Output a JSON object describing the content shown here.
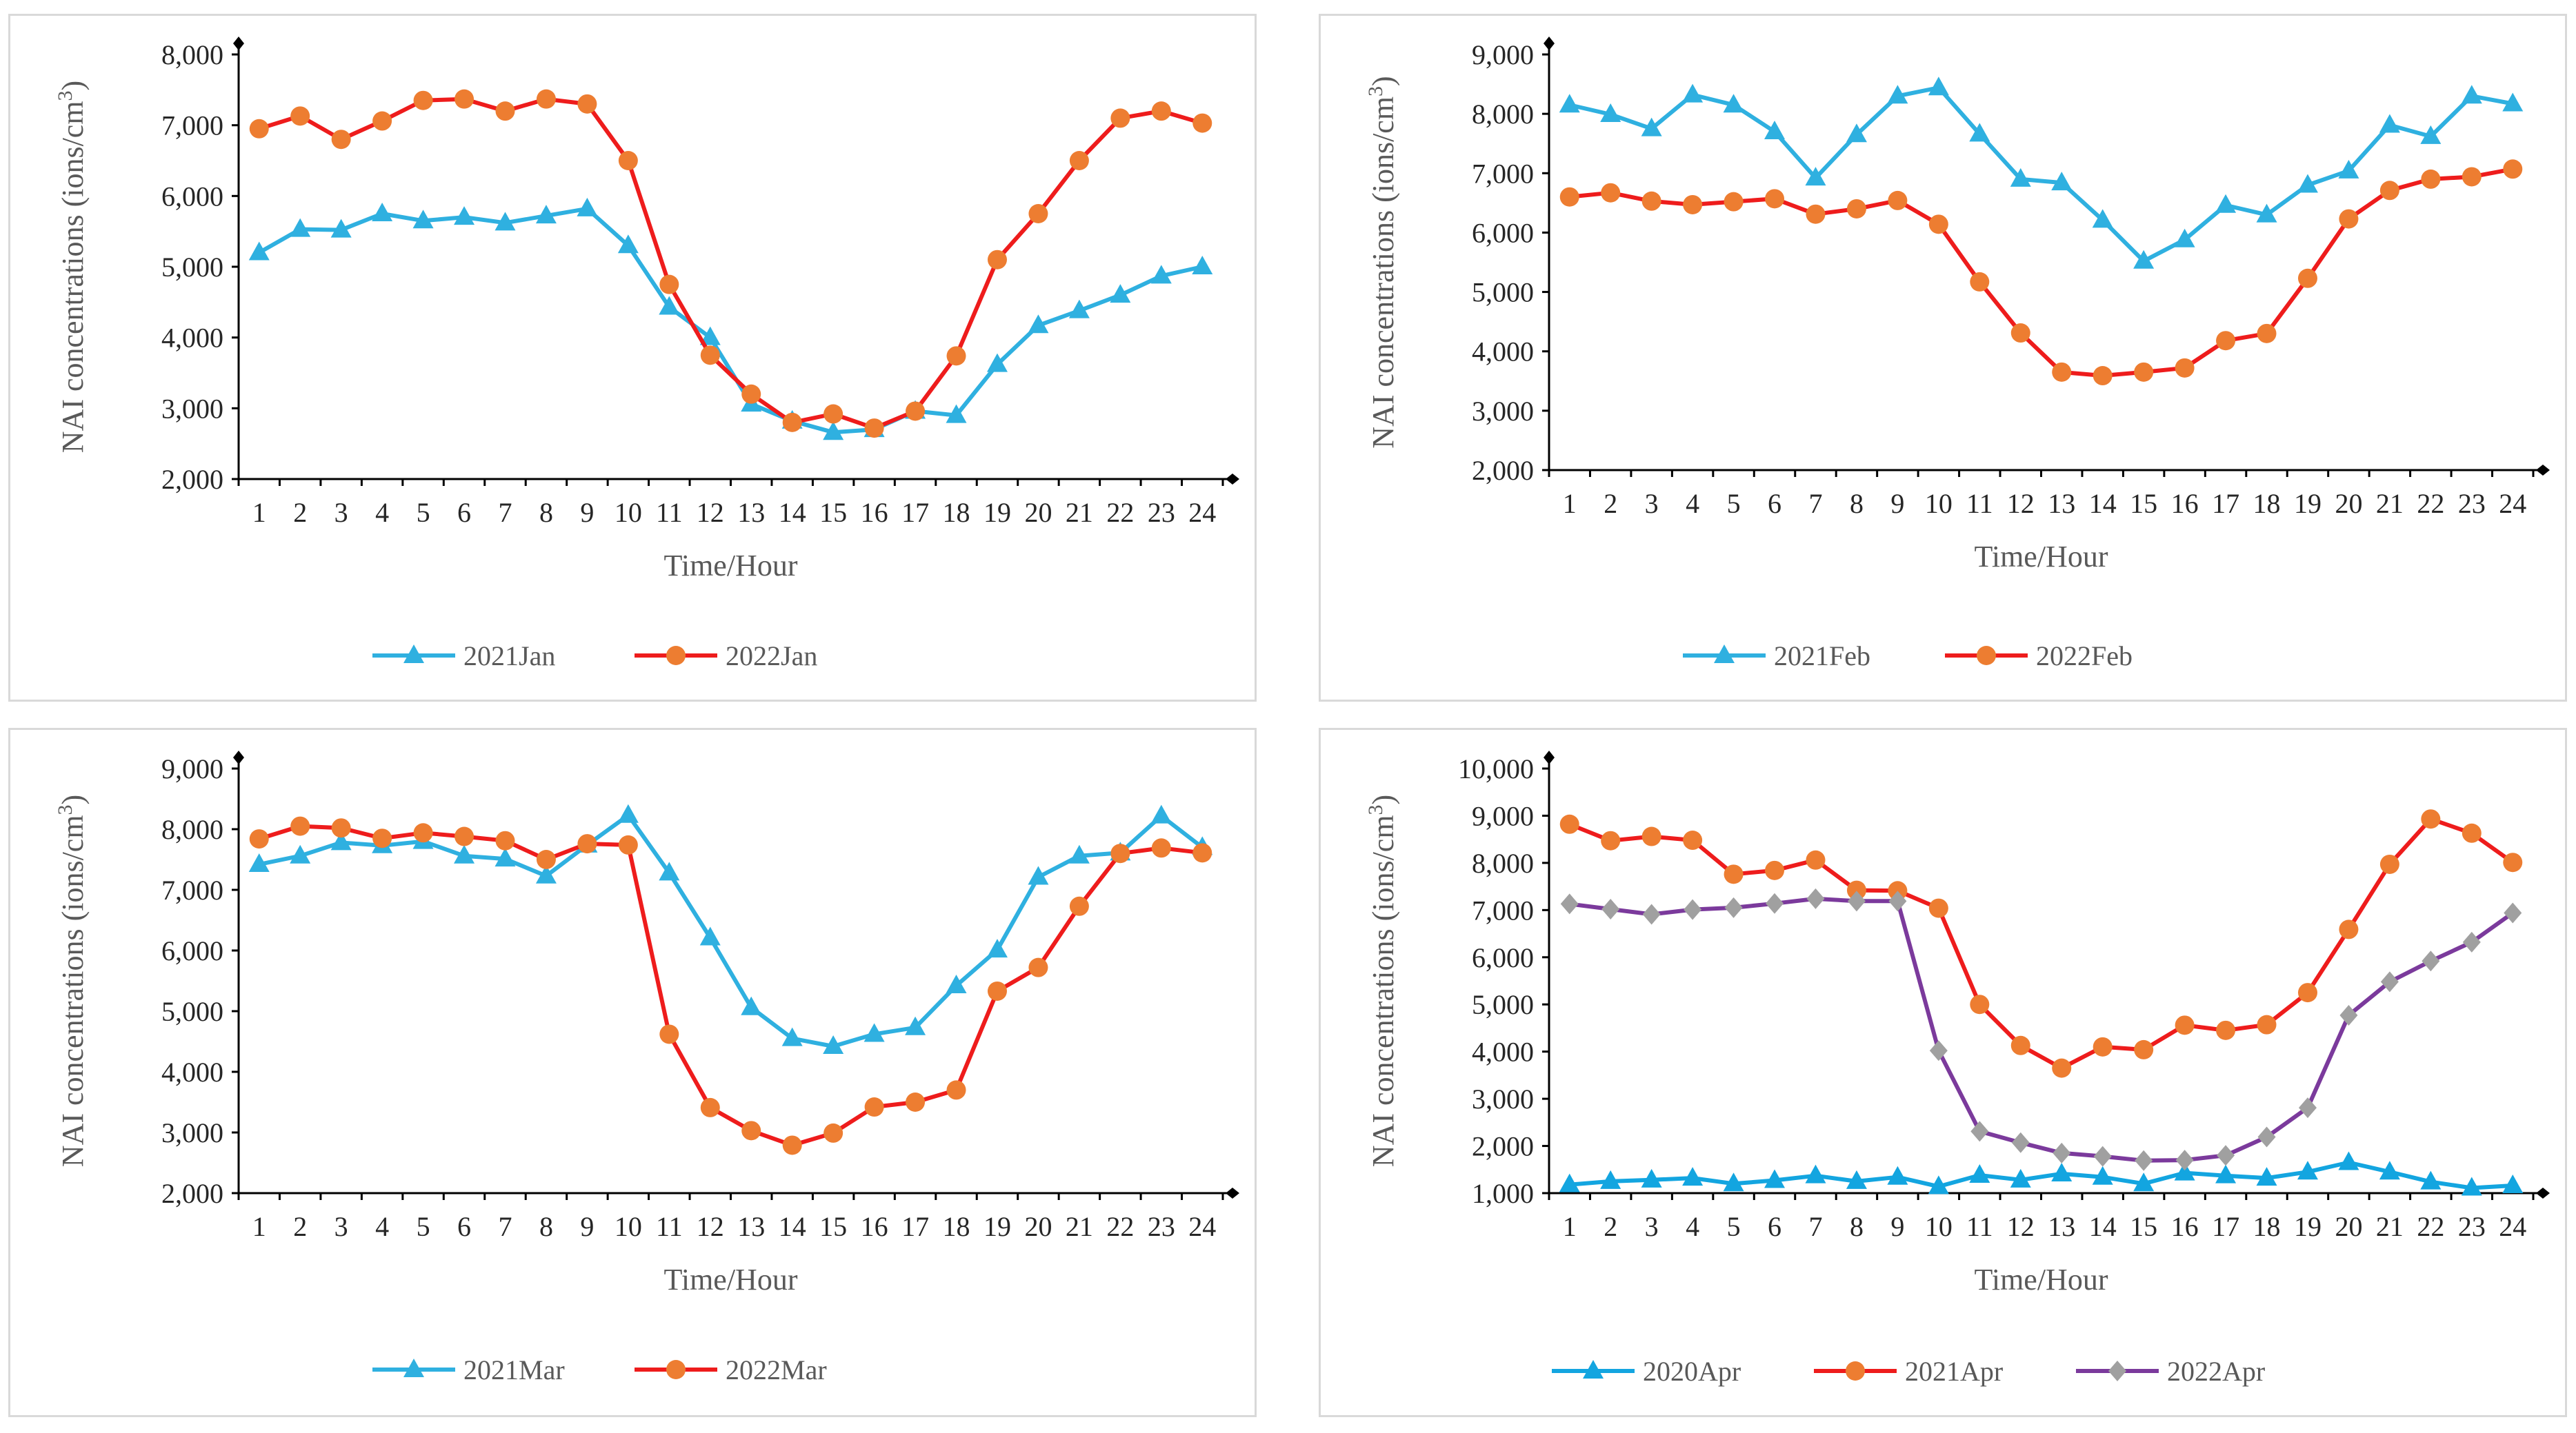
{
  "chart_data": [
    {
      "type": "line",
      "title": "",
      "xlabel": "Time/Hour",
      "ylabel": "NAI concentrations (ions/cm",
      "ylabel_sup": "3",
      "ylabel_close": ")",
      "ylim": [
        2000,
        8000
      ],
      "yticks": [
        "2,000",
        "3,000",
        "4,000",
        "5,000",
        "6,000",
        "7,000",
        "8,000"
      ],
      "categories": [
        "1",
        "2",
        "3",
        "4",
        "5",
        "6",
        "7",
        "8",
        "9",
        "10",
        "11",
        "12",
        "13",
        "14",
        "15",
        "16",
        "17",
        "18",
        "19",
        "20",
        "21",
        "22",
        "23",
        "24"
      ],
      "legend_position": "bottom",
      "series": [
        {
          "name": "2021Jan",
          "color": "#2fb0e0",
          "marker": "triangle",
          "values": [
            5200,
            5530,
            5520,
            5750,
            5650,
            5700,
            5620,
            5720,
            5820,
            5300,
            4430,
            4000,
            3060,
            2820,
            2660,
            2700,
            2960,
            2900,
            3620,
            4170,
            4380,
            4600,
            4870,
            5000
          ]
        },
        {
          "name": "2022Jan",
          "color": "#ee1c1c",
          "marker": "circle",
          "marker_color": "#ed7d31",
          "values": [
            6950,
            7130,
            6800,
            7060,
            7350,
            7370,
            7200,
            7370,
            7300,
            6500,
            4750,
            3750,
            3200,
            2800,
            2920,
            2720,
            2960,
            3740,
            5100,
            5750,
            6500,
            7100,
            7200,
            7030
          ]
        }
      ]
    },
    {
      "type": "line",
      "title": "",
      "xlabel": "Time/Hour",
      "ylabel": "NAI concentrations (ions/cm",
      "ylabel_sup": "3",
      "ylabel_close": ")",
      "ylim": [
        2000,
        9000
      ],
      "yticks": [
        "2,000",
        "3,000",
        "4,000",
        "5,000",
        "6,000",
        "7,000",
        "8,000",
        "9,000"
      ],
      "categories": [
        "1",
        "2",
        "3",
        "4",
        "5",
        "6",
        "7",
        "8",
        "9",
        "10",
        "11",
        "12",
        "13",
        "14",
        "15",
        "16",
        "17",
        "18",
        "19",
        "20",
        "21",
        "22",
        "23",
        "24"
      ],
      "legend_position": "bottom",
      "series": [
        {
          "name": "2021Feb",
          "color": "#2fb0e0",
          "marker": "triangle",
          "values": [
            8150,
            7990,
            7750,
            8320,
            8150,
            7700,
            6920,
            7650,
            8300,
            8440,
            7660,
            6900,
            6840,
            6210,
            5520,
            5880,
            6460,
            6300,
            6800,
            7040,
            7810,
            7620,
            8300,
            8170
          ]
        },
        {
          "name": "2022Feb",
          "color": "#ee1c1c",
          "marker": "circle",
          "marker_color": "#ed7d31",
          "values": [
            6600,
            6670,
            6530,
            6470,
            6520,
            6570,
            6310,
            6400,
            6540,
            6140,
            5170,
            4310,
            3650,
            3590,
            3650,
            3720,
            4180,
            4300,
            5230,
            6230,
            6710,
            6900,
            6940,
            7070
          ]
        }
      ]
    },
    {
      "type": "line",
      "title": "",
      "xlabel": "Time/Hour",
      "ylabel": "NAI concentrations (ions/cm",
      "ylabel_sup": "3",
      "ylabel_close": ")",
      "ylim": [
        2000,
        9000
      ],
      "yticks": [
        "2,000",
        "3,000",
        "4,000",
        "5,000",
        "6,000",
        "7,000",
        "8,000",
        "9,000"
      ],
      "categories": [
        "1",
        "2",
        "3",
        "4",
        "5",
        "6",
        "7",
        "8",
        "9",
        "10",
        "11",
        "12",
        "13",
        "14",
        "15",
        "16",
        "17",
        "18",
        "19",
        "20",
        "21",
        "22",
        "23",
        "24"
      ],
      "legend_position": "bottom",
      "series": [
        {
          "name": "2021Mar",
          "color": "#2fb0e0",
          "marker": "triangle",
          "values": [
            7420,
            7560,
            7780,
            7730,
            7800,
            7560,
            7510,
            7230,
            7740,
            8230,
            7280,
            6210,
            5060,
            4550,
            4420,
            4620,
            4730,
            5420,
            6010,
            7210,
            7560,
            7610,
            8220,
            7700
          ]
        },
        {
          "name": "2022Mar",
          "color": "#ee1c1c",
          "marker": "circle",
          "marker_color": "#ed7d31",
          "values": [
            7840,
            8050,
            8020,
            7850,
            7940,
            7880,
            7810,
            7500,
            7760,
            7740,
            4620,
            3410,
            3030,
            2790,
            2990,
            3420,
            3500,
            3700,
            5330,
            5720,
            6730,
            7600,
            7690,
            7610
          ]
        }
      ]
    },
    {
      "type": "line",
      "title": "",
      "xlabel": "Time/Hour",
      "ylabel": "NAI concentrations (ions/cm",
      "ylabel_sup": "3",
      "ylabel_close": ")",
      "ylim": [
        1000,
        10000
      ],
      "yticks": [
        "1,000",
        "2,000",
        "3,000",
        "4,000",
        "5,000",
        "6,000",
        "7,000",
        "8,000",
        "9,000",
        "10,000"
      ],
      "categories": [
        "1",
        "2",
        "3",
        "4",
        "5",
        "6",
        "7",
        "8",
        "9",
        "10",
        "11",
        "12",
        "13",
        "14",
        "15",
        "16",
        "17",
        "18",
        "19",
        "20",
        "21",
        "22",
        "23",
        "24"
      ],
      "legend_position": "bottom",
      "series": [
        {
          "name": "2020Apr",
          "color": "#13a5e0",
          "marker": "triangle",
          "values": [
            1180,
            1250,
            1280,
            1320,
            1200,
            1270,
            1370,
            1250,
            1340,
            1140,
            1380,
            1280,
            1410,
            1340,
            1200,
            1430,
            1370,
            1320,
            1450,
            1650,
            1450,
            1240,
            1110,
            1160
          ]
        },
        {
          "name": "2021Apr",
          "color": "#ee1c1c",
          "marker": "circle",
          "marker_color": "#ed7d31",
          "values": [
            8820,
            8470,
            8560,
            8480,
            7760,
            7840,
            8060,
            7420,
            7410,
            7040,
            5000,
            4130,
            3650,
            4100,
            4040,
            4560,
            4450,
            4570,
            5250,
            6590,
            7970,
            8930,
            8630,
            8010
          ]
        },
        {
          "name": "2022Apr",
          "color": "#7b3a9c",
          "marker": "diamond",
          "marker_color": "#a0a0a0",
          "values": [
            7130,
            7020,
            6910,
            7010,
            7050,
            7140,
            7240,
            7190,
            7190,
            4020,
            2310,
            2070,
            1850,
            1780,
            1690,
            1700,
            1800,
            2190,
            2810,
            4770,
            5480,
            5920,
            6320,
            6940
          ]
        }
      ]
    }
  ]
}
